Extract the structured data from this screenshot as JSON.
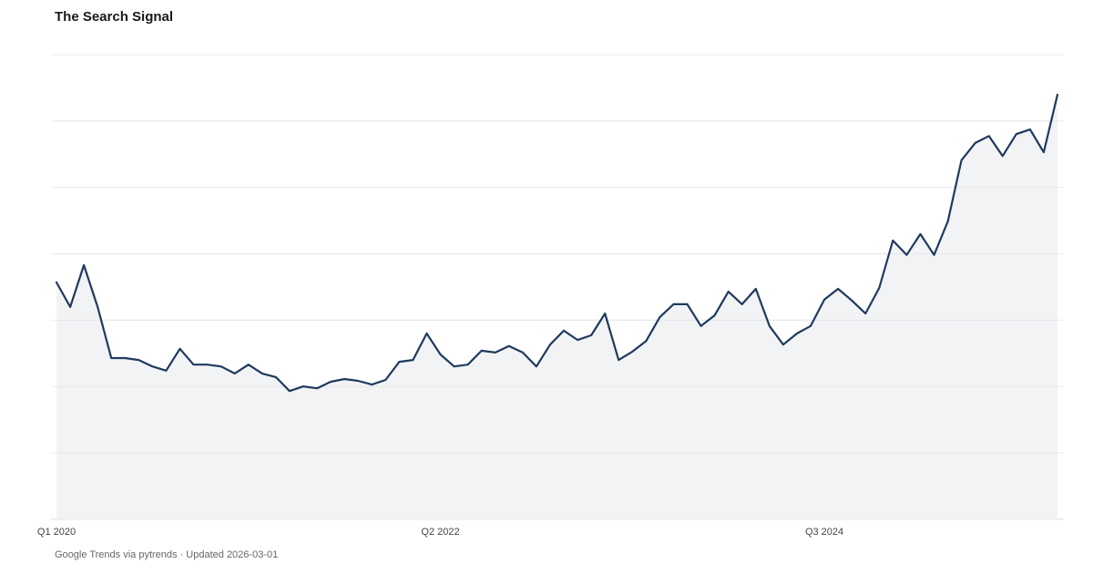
{
  "chart_data": {
    "type": "area",
    "title": "The Search Signal",
    "xlabel": "",
    "ylabel": "",
    "ylim": [
      0,
      100
    ],
    "grid": true,
    "x_ticks": [
      {
        "label": "Q1 2020",
        "index": 0
      },
      {
        "label": "Q2 2022",
        "index": 28
      },
      {
        "label": "Q3 2024",
        "index": 56
      }
    ],
    "values": [
      51.0,
      45.7,
      54.7,
      45.7,
      34.7,
      34.7,
      34.3,
      32.9,
      32.0,
      36.7,
      33.3,
      33.3,
      32.9,
      31.4,
      33.3,
      31.4,
      30.6,
      27.6,
      28.6,
      28.2,
      29.6,
      30.2,
      29.8,
      29.0,
      30.0,
      33.9,
      34.3,
      40.0,
      35.5,
      32.9,
      33.3,
      36.3,
      35.9,
      37.3,
      35.9,
      32.9,
      37.6,
      40.6,
      38.6,
      39.6,
      44.3,
      34.3,
      36.1,
      38.4,
      43.5,
      46.3,
      46.3,
      41.6,
      43.9,
      49.0,
      46.3,
      49.6,
      41.6,
      37.6,
      40.0,
      41.6,
      47.3,
      49.6,
      47.1,
      44.3,
      49.8,
      60.0,
      56.9,
      61.4,
      56.9,
      64.1,
      77.3,
      81.0,
      82.5,
      78.2,
      82.9,
      83.9,
      79.0,
      91.4
    ],
    "colors": {
      "line": "#1f3a5f",
      "fill": "#f2f3f5",
      "grid": "#ebebeb"
    }
  },
  "footer": "Google Trends via pytrends · Updated 2026-03-01"
}
